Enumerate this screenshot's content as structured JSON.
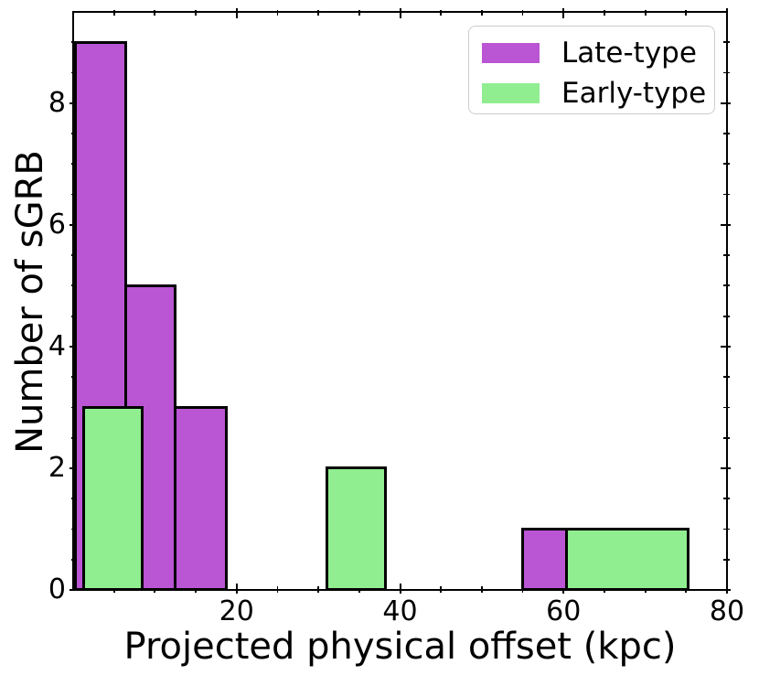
{
  "chart_data": {
    "type": "histogram",
    "title": "",
    "xlabel": "Projected physical offset (kpc)",
    "ylabel": "Number of sGRB",
    "xlim": [
      0,
      80
    ],
    "ylim": [
      0,
      9.5
    ],
    "x_major_ticks": [
      20,
      40,
      60,
      80
    ],
    "x_minor_tick_step": 5,
    "y_major_ticks": [
      0,
      2,
      4,
      6,
      8
    ],
    "y_minor_tick_step": 0.5,
    "grid": false,
    "tick_direction": "inout",
    "bar_edge_color": "#000000",
    "axis_color": "#000000",
    "legend": {
      "position": "upper-right",
      "border_color": "#cccccc",
      "entries": [
        {
          "label": "Late-type",
          "color": "#ba55d3"
        },
        {
          "label": "Early-type",
          "color": "#90ee90"
        }
      ]
    },
    "series": [
      {
        "name": "Late-type",
        "color": "#ba55d3",
        "bars": [
          {
            "x0": 0.3,
            "x1": 6.4,
            "count": 9
          },
          {
            "x0": 6.4,
            "x1": 12.5,
            "count": 5
          },
          {
            "x0": 12.5,
            "x1": 18.7,
            "count": 3
          },
          {
            "x0": 55.0,
            "x1": 60.4,
            "count": 1
          }
        ]
      },
      {
        "name": "Early-type",
        "color": "#90ee90",
        "bars": [
          {
            "x0": 1.3,
            "x1": 8.5,
            "count": 3
          },
          {
            "x0": 31.0,
            "x1": 38.2,
            "count": 2
          },
          {
            "x0": 60.4,
            "x1": 75.2,
            "count": 1
          }
        ]
      }
    ]
  }
}
